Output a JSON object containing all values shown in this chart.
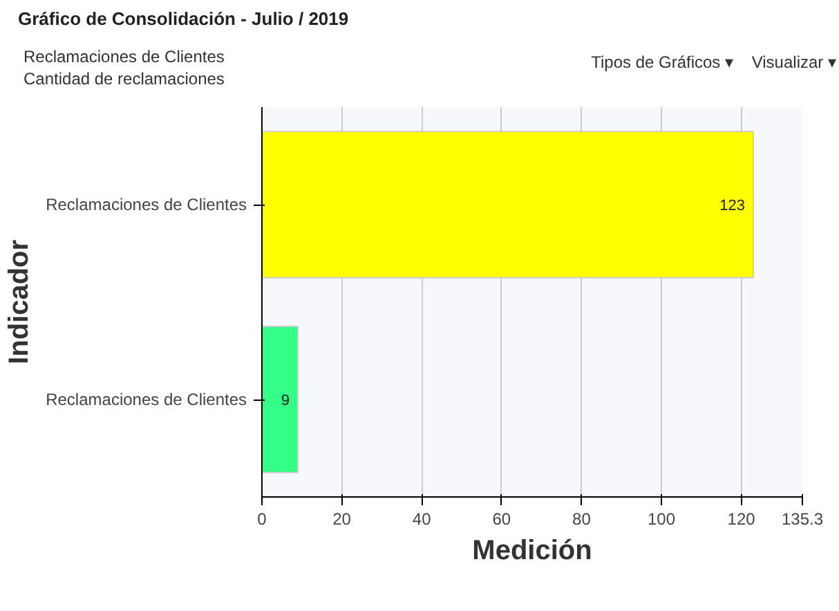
{
  "chart_data": {
    "type": "bar",
    "orientation": "horizontal",
    "title": "Gráfico de Consolidación - Julio / 2019",
    "subtitle": "Reclamaciones de Clientes\nCantidad de reclamaciones",
    "annotations": [
      "Tipos de Gráficos ▾",
      "Visualizar ▾"
    ],
    "xlabel": "Medición",
    "ylabel": "Indicador",
    "categories": [
      "Reclamaciones de Clientes",
      "Reclamaciones de Clientes"
    ],
    "values": [
      123,
      9
    ],
    "colors": [
      "#ffff00",
      "#33ff88"
    ],
    "xlim": [
      0,
      135.3
    ],
    "xticks": [
      0,
      20,
      40,
      60,
      80,
      100,
      120,
      135.3
    ],
    "grid": "x",
    "data_labels": true
  }
}
